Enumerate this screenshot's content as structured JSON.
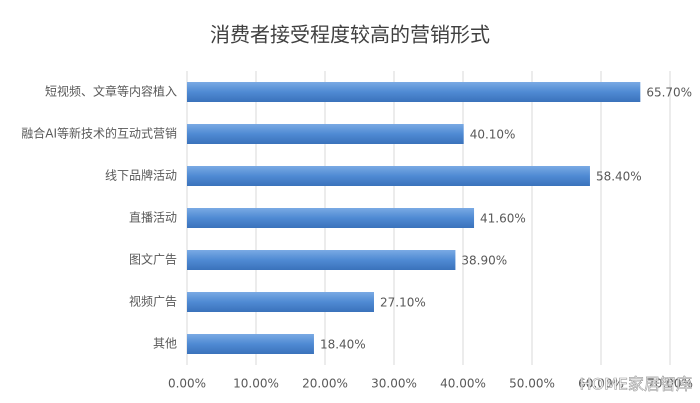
{
  "chart_data": {
    "type": "barh",
    "title": "消费者接受程度较高的营销形式",
    "categories": [
      "短视频、文章等内容植入",
      "融合AI等新技术的互动式营销",
      "线下品牌活动",
      "直播活动",
      "图文广告",
      "视频广告",
      "其他"
    ],
    "values": [
      65.7,
      40.1,
      58.4,
      41.6,
      38.9,
      27.1,
      18.4
    ],
    "value_labels": [
      "65.70%",
      "40.10%",
      "58.40%",
      "41.60%",
      "38.90%",
      "27.10%",
      "18.40%"
    ],
    "color": "#4f8ad3",
    "xlim": [
      0,
      70
    ],
    "xticks": [
      {
        "value": 0,
        "label": "0.00%"
      },
      {
        "value": 10,
        "label": "10.00%"
      },
      {
        "value": 20,
        "label": "20.00%"
      },
      {
        "value": 30,
        "label": "30.00%"
      },
      {
        "value": 40,
        "label": "40.00%"
      },
      {
        "value": 50,
        "label": "50.00%"
      },
      {
        "value": 60,
        "label": "60.00%"
      },
      {
        "value": 70,
        "label": "70.00%"
      }
    ],
    "grid": true,
    "watermark": "HOME家居智库"
  }
}
